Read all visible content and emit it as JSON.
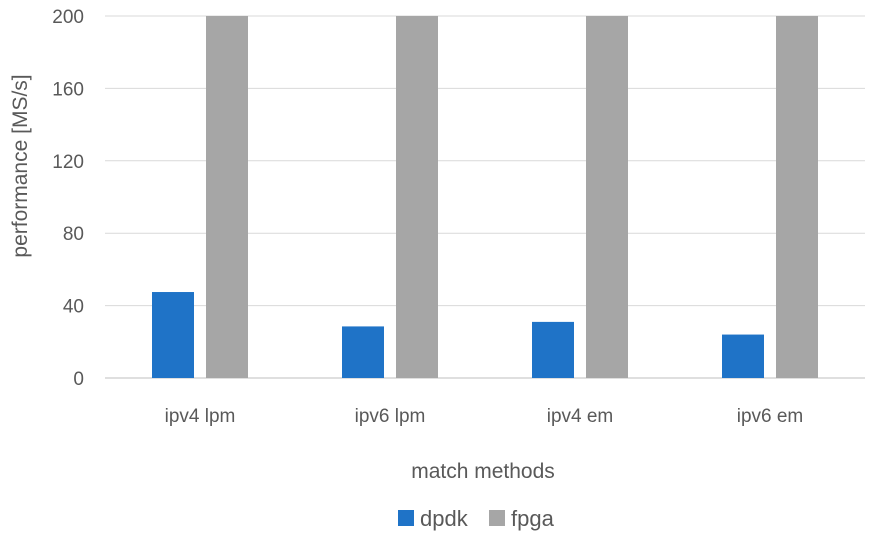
{
  "chart_data": {
    "type": "bar",
    "title": "",
    "xlabel": "match methods",
    "ylabel": "performance [MS/s]",
    "categories": [
      "ipv4 lpm",
      "ipv6 lpm",
      "ipv4 em",
      "ipv6 em"
    ],
    "series": [
      {
        "name": "dpdk",
        "color": "#1f73c7",
        "values": [
          47.5,
          28.5,
          31,
          24
        ]
      },
      {
        "name": "fpga",
        "color": "#a6a6a6",
        "values": [
          200,
          200,
          200,
          200
        ]
      }
    ],
    "ylim": [
      0,
      200
    ],
    "yticks": [
      0,
      40,
      80,
      120,
      160,
      200
    ],
    "grid": true,
    "legend_position": "bottom"
  }
}
